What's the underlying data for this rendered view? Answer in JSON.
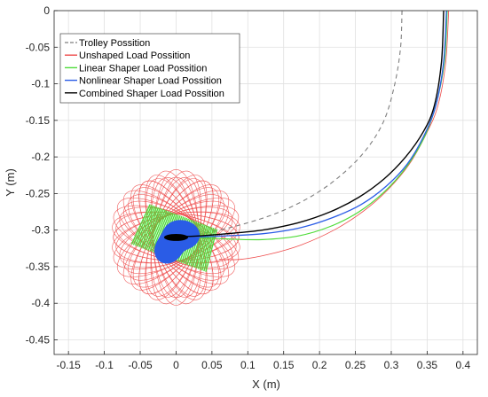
{
  "chart_data": {
    "type": "line",
    "title": "",
    "xlabel": "X (m)",
    "ylabel": "Y (m)",
    "xlim": [
      -0.17,
      0.42
    ],
    "ylim": [
      -0.47,
      0.0
    ],
    "x_ticks": [
      -0.15,
      -0.1,
      -0.05,
      0,
      0.05,
      0.1,
      0.15,
      0.2,
      0.25,
      0.3,
      0.35,
      0.4
    ],
    "x_tick_labels": [
      "-0.15",
      "-0.1",
      "-0.05",
      "0",
      "0.05",
      "0.1",
      "0.15",
      "0.2",
      "0.25",
      "0.3",
      "0.35",
      "0.4"
    ],
    "y_ticks": [
      0,
      -0.05,
      -0.1,
      -0.15,
      -0.2,
      -0.25,
      -0.3,
      -0.35,
      -0.4,
      -0.45
    ],
    "y_tick_labels": [
      "0",
      "-0.05",
      "-0.1",
      "-0.15",
      "-0.2",
      "-0.25",
      "-0.3",
      "-0.35",
      "-0.4",
      "-0.45"
    ],
    "grid": true,
    "legend_position": "top-left",
    "series": [
      {
        "name": "Trolley Possition",
        "color": "#7f7f7f",
        "style": "dashed",
        "approach": {
          "x": [
            0.315,
            0.313,
            0.305,
            0.29,
            0.265,
            0.23,
            0.19,
            0.145,
            0.1,
            0.06,
            0.03,
            0.01,
            0.0
          ],
          "y": [
            0.0,
            -0.05,
            -0.1,
            -0.15,
            -0.19,
            -0.225,
            -0.253,
            -0.275,
            -0.29,
            -0.3,
            -0.305,
            -0.308,
            -0.31
          ]
        }
      },
      {
        "name": "Unshaped Load Possition",
        "color": "#ee4b4b",
        "style": "solid",
        "approach": {
          "x": [
            0.38,
            0.376,
            0.365,
            0.348,
            0.325,
            0.295,
            0.26,
            0.22,
            0.175,
            0.13,
            0.09,
            0.06
          ],
          "y": [
            0.0,
            -0.07,
            -0.13,
            -0.17,
            -0.21,
            -0.245,
            -0.275,
            -0.3,
            -0.32,
            -0.333,
            -0.34,
            -0.34
          ]
        },
        "oscillation": {
          "center": [
            0.0,
            -0.31
          ],
          "inner_radius": 0.05,
          "outer_radius": 0.125,
          "loops": 36
        }
      },
      {
        "name": "Linear Shaper Load Possition",
        "color": "#4fdc3a",
        "style": "solid",
        "approach": {
          "x": [
            0.378,
            0.374,
            0.362,
            0.345,
            0.32,
            0.29,
            0.255,
            0.215,
            0.17,
            0.12,
            0.07,
            0.03
          ],
          "y": [
            0.0,
            -0.07,
            -0.13,
            -0.175,
            -0.215,
            -0.248,
            -0.275,
            -0.295,
            -0.308,
            -0.313,
            -0.312,
            -0.31
          ]
        },
        "oscillation": {
          "center": [
            0.0,
            -0.31
          ],
          "half_width": 0.055,
          "half_height": 0.03,
          "angle_deg": -20
        }
      },
      {
        "name": "Nonlinear Shaper Load Possition",
        "color": "#2a5ce6",
        "style": "solid",
        "approach": {
          "x": [
            0.377,
            0.373,
            0.362,
            0.345,
            0.322,
            0.293,
            0.258,
            0.218,
            0.172,
            0.12,
            0.065,
            0.02
          ],
          "y": [
            0.0,
            -0.07,
            -0.13,
            -0.172,
            -0.21,
            -0.24,
            -0.265,
            -0.283,
            -0.297,
            -0.305,
            -0.308,
            -0.31
          ]
        },
        "oscillation": {
          "center": [
            0.0,
            -0.31
          ],
          "radius": 0.028
        }
      },
      {
        "name": "Combined Shaper Load Possition",
        "color": "#000000",
        "style": "solid",
        "approach": {
          "x": [
            0.373,
            0.37,
            0.36,
            0.345,
            0.32,
            0.29,
            0.255,
            0.215,
            0.17,
            0.12,
            0.07,
            0.03,
            -0.015
          ],
          "y": [
            0.0,
            -0.07,
            -0.13,
            -0.165,
            -0.2,
            -0.23,
            -0.255,
            -0.275,
            -0.29,
            -0.3,
            -0.305,
            -0.308,
            -0.31
          ]
        },
        "oscillation": {
          "center": [
            0.0,
            -0.31
          ],
          "radius": 0.012
        }
      }
    ]
  }
}
